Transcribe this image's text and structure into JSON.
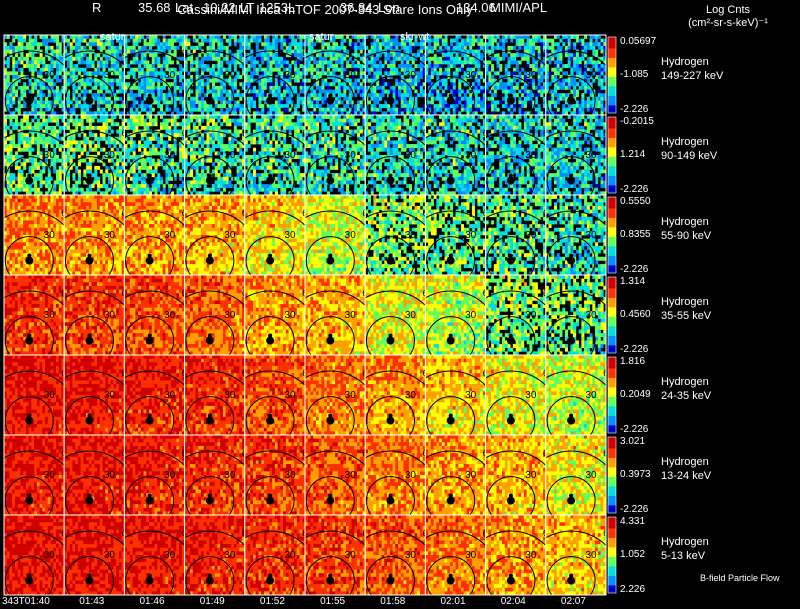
{
  "header": {
    "title": "Cassini/MIMI Inca mTOF  2007-343   Stare   Ions Only",
    "r_label": "R",
    "r_value": "35.68",
    "lat_label": "Lat",
    "lat_value": "10.22",
    "lt_label": "LT",
    "lt_value": "1253",
    "l_label": "L",
    "l_value": "36.84",
    "lon_label": "Lon",
    "lon_value": "134.06",
    "credit": "MIMI/APL"
  },
  "panel_labels": [
    "satur",
    "satur",
    "skr-wt"
  ],
  "legend": {
    "title_line1": "Log Cnts",
    "title_line2": "(cm²-sr-s-keV)⁻¹"
  },
  "footer_note": "B-field Particle Flow",
  "chart_data": {
    "type": "heatmap",
    "time_labels": [
      "343T01:40",
      "01:43",
      "01:46",
      "01:49",
      "01:52",
      "01:55",
      "01:58",
      "02:01",
      "02:04",
      "02:07"
    ],
    "contour_labels": [
      "30",
      "60"
    ],
    "colorscale": [
      "#0000d0",
      "#0090ff",
      "#00e0e0",
      "#60ff60",
      "#ffff00",
      "#ffa000",
      "#ff3000",
      "#d00000"
    ],
    "rows": [
      {
        "species": "Hydrogen",
        "energy": "149-227 keV",
        "cb_max": "0.05697",
        "cb_mid": "-1.085",
        "cb_min": "-2.226",
        "level": [
          0.32,
          0.3,
          0.3,
          0.3,
          0.28,
          0.28,
          0.26,
          0.26,
          0.26,
          0.26
        ]
      },
      {
        "species": "Hydrogen",
        "energy": "90-149 keV",
        "cb_max": "-0.2015",
        "cb_mid": "1.214",
        "cb_min": "-2.226",
        "level": [
          0.4,
          0.4,
          0.38,
          0.36,
          0.36,
          0.34,
          0.32,
          0.32,
          0.3,
          0.3
        ]
      },
      {
        "species": "Hydrogen",
        "energy": "55-90 keV",
        "cb_max": "0.5550",
        "cb_mid": "0.8355",
        "cb_min": "-2.226",
        "level": [
          0.7,
          0.7,
          0.68,
          0.64,
          0.6,
          0.52,
          0.44,
          0.42,
          0.38,
          0.36
        ]
      },
      {
        "species": "Hydrogen",
        "energy": "35-55 keV",
        "cb_max": "1.314",
        "cb_mid": "0.4560",
        "cb_min": "-2.226",
        "level": [
          0.82,
          0.8,
          0.78,
          0.74,
          0.68,
          0.64,
          0.56,
          0.5,
          0.44,
          0.42
        ]
      },
      {
        "species": "Hydrogen",
        "energy": "24-35 keV",
        "cb_max": "1.816",
        "cb_mid": "0.2049",
        "cb_min": "-2.226",
        "level": [
          0.88,
          0.86,
          0.84,
          0.82,
          0.78,
          0.72,
          0.68,
          0.62,
          0.56,
          0.52
        ]
      },
      {
        "species": "Hydrogen",
        "energy": "13-24 keV",
        "cb_max": "3.021",
        "cb_mid": "0.3973",
        "cb_min": "-2.226",
        "level": [
          0.86,
          0.86,
          0.84,
          0.82,
          0.8,
          0.76,
          0.72,
          0.68,
          0.64,
          0.58
        ]
      },
      {
        "species": "Hydrogen",
        "energy": "5-13 keV",
        "cb_max": "4.331",
        "cb_mid": "1.052",
        "cb_min": "2.226",
        "level": [
          0.88,
          0.88,
          0.86,
          0.84,
          0.82,
          0.8,
          0.76,
          0.72,
          0.68,
          0.62
        ]
      }
    ]
  }
}
